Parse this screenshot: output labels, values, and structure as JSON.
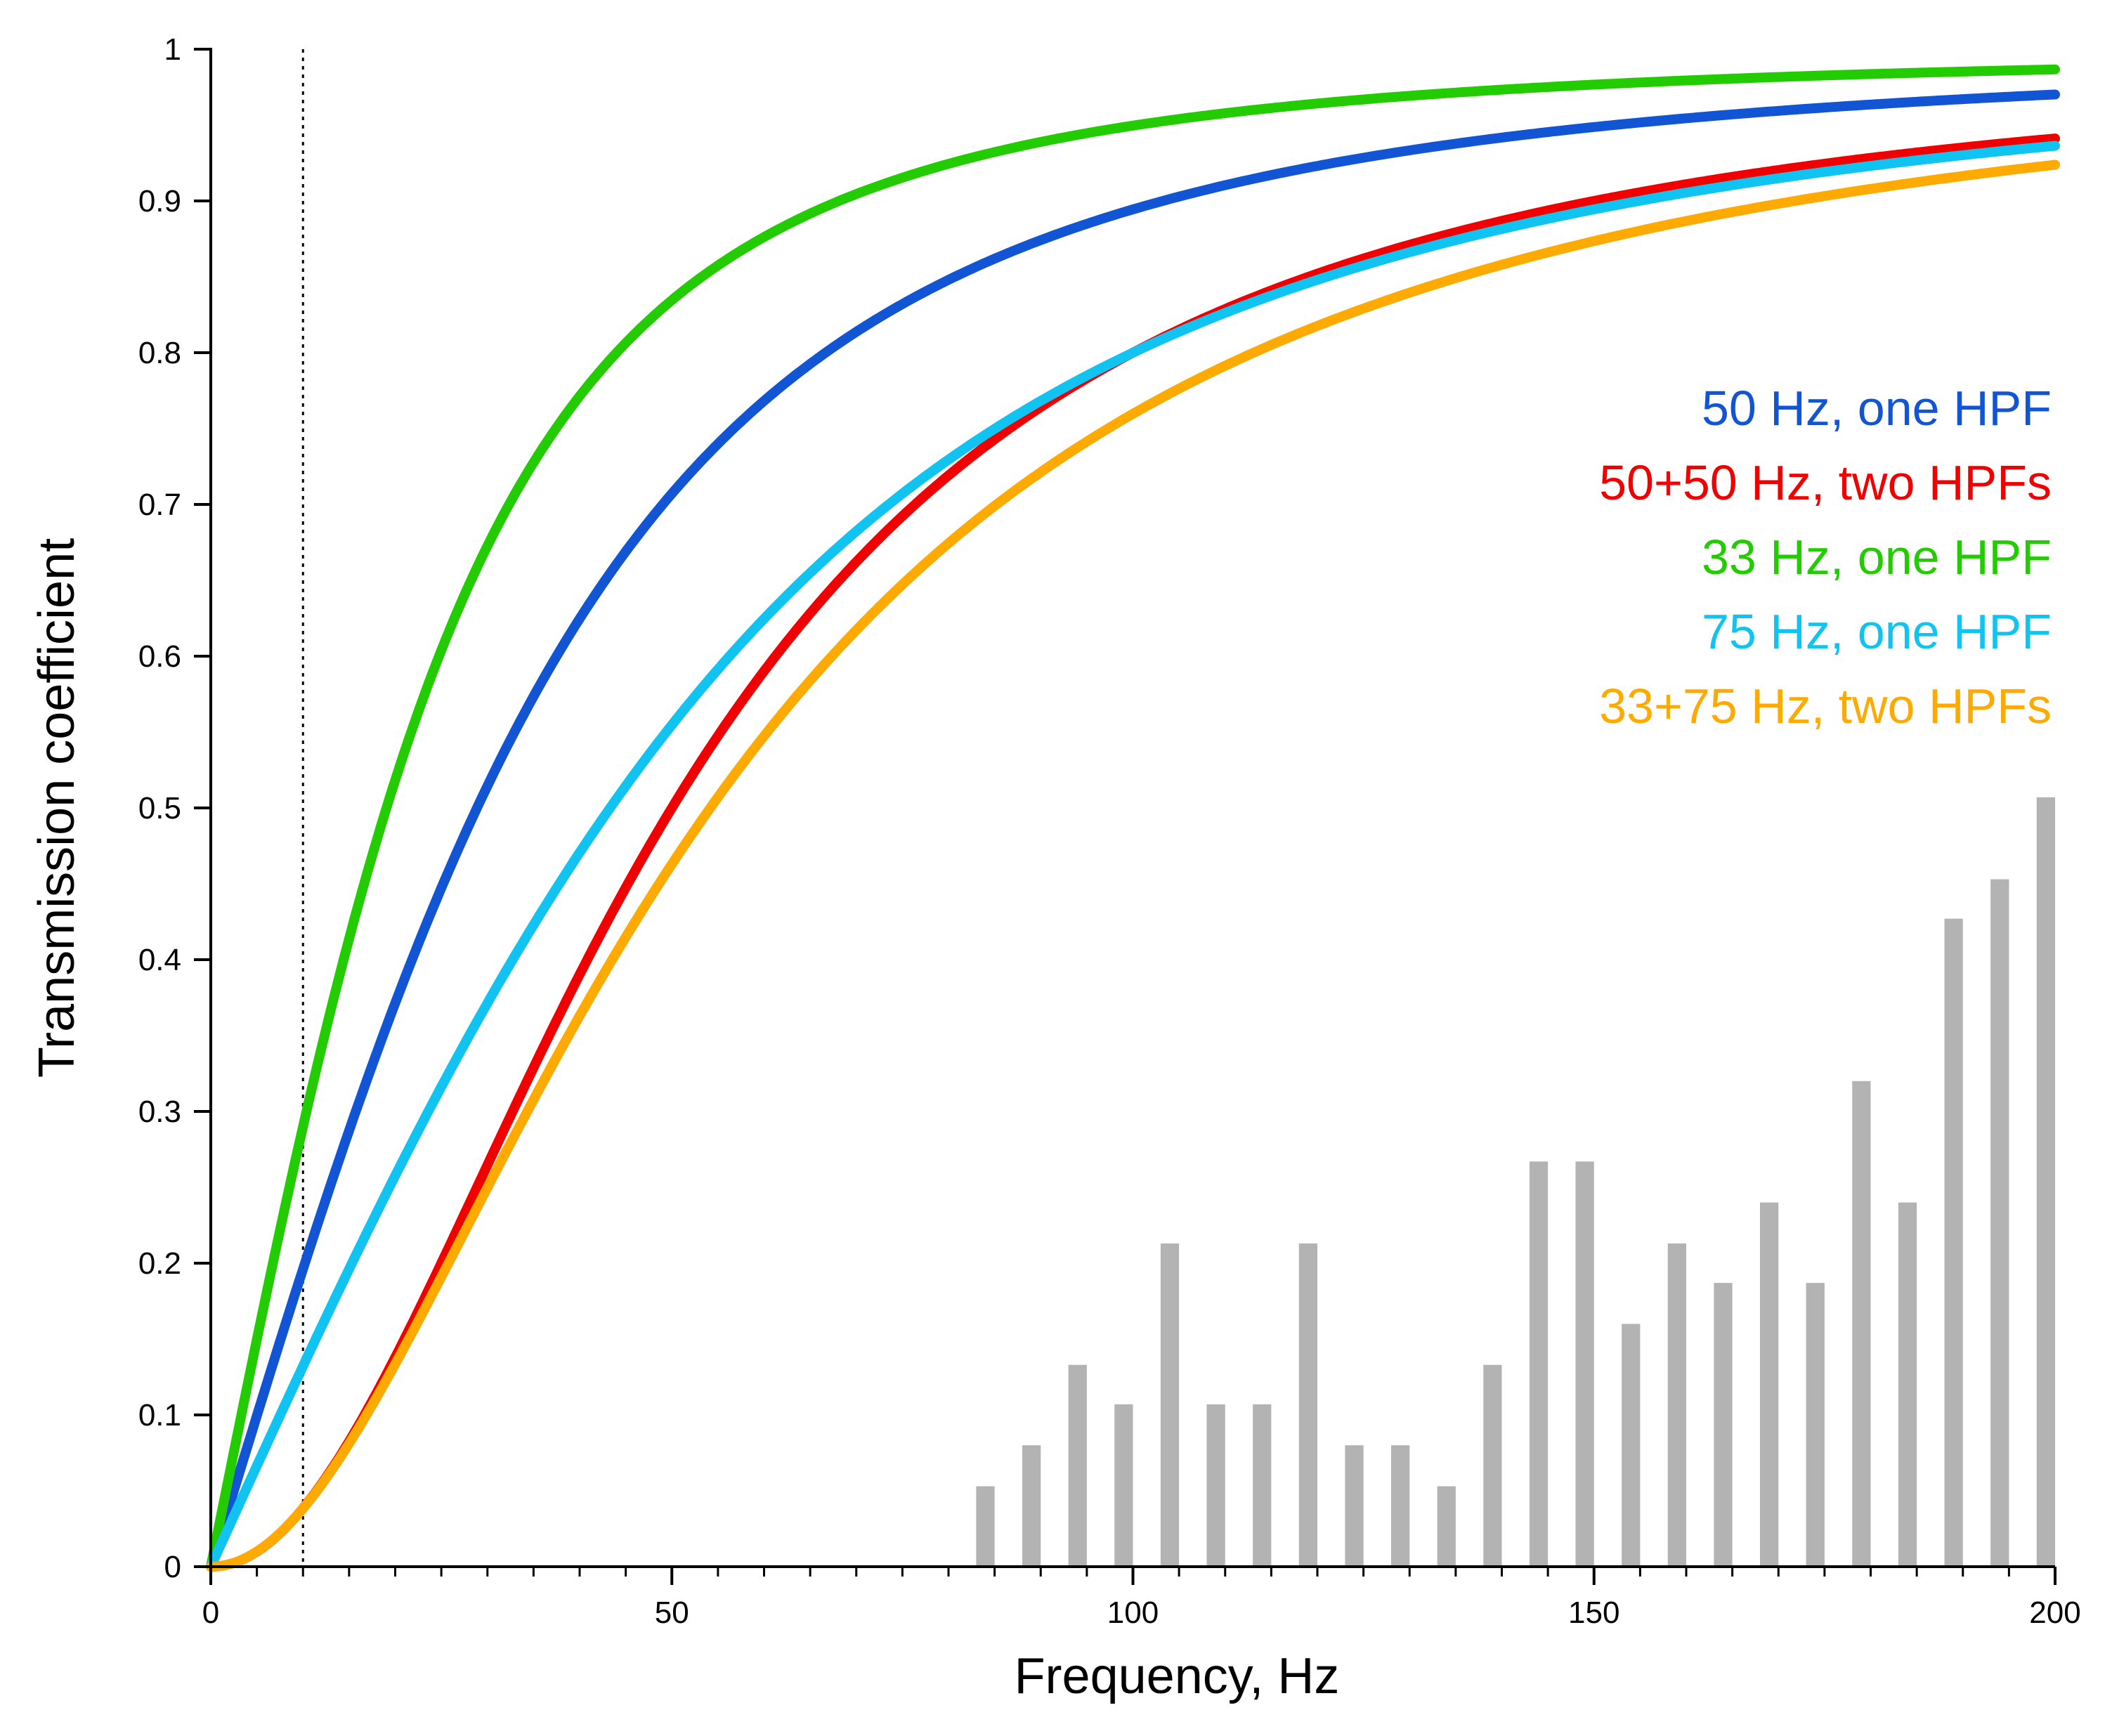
{
  "chart_data": {
    "type": "line",
    "title": "",
    "xlabel": "Frequency, Hz",
    "ylabel": "Transmission coefficient",
    "xlim": [
      0,
      200
    ],
    "ylim": [
      0,
      1
    ],
    "x_ticks": [
      0,
      50,
      100,
      150,
      200
    ],
    "y_ticks": [
      0,
      0.1,
      0.2,
      0.3,
      0.4,
      0.5,
      0.6,
      0.7,
      0.8,
      0.9,
      1
    ],
    "y_tick_labels": [
      "0",
      "0.1",
      "0.2",
      "0.3",
      "0.4",
      "0.5",
      "0.6",
      "0.7",
      "0.8",
      "0.9",
      "1"
    ],
    "x_minor_tick_step": 5,
    "grid": false,
    "legend_position": "right",
    "reference_line": {
      "x": 10,
      "style": "dotted"
    },
    "series": [
      {
        "name": "50 Hz, one HPF",
        "color": "#1155d4",
        "filter_type": "one",
        "cutoffs_hz": [
          50
        ],
        "x": [
          0,
          10,
          20,
          30,
          40,
          50,
          60,
          80,
          100,
          150,
          200
        ],
        "values": [
          0,
          0.196,
          0.371,
          0.514,
          0.625,
          0.707,
          0.768,
          0.848,
          0.894,
          0.949,
          0.97
        ]
      },
      {
        "name": "50+50 Hz, two HPFs",
        "color": "#f00000",
        "filter_type": "two",
        "cutoffs_hz": [
          50,
          50
        ],
        "x": [
          0,
          10,
          20,
          30,
          40,
          50,
          60,
          80,
          100,
          150,
          200
        ],
        "values": [
          0,
          0.038,
          0.138,
          0.265,
          0.39,
          0.5,
          0.59,
          0.72,
          0.8,
          0.9,
          0.941
        ]
      },
      {
        "name": "33 Hz, one HPF",
        "color": "#22cc00",
        "filter_type": "one",
        "cutoffs_hz": [
          33
        ],
        "x": [
          0,
          10,
          20,
          30,
          40,
          50,
          60,
          80,
          100,
          150,
          200
        ],
        "values": [
          0,
          0.29,
          0.518,
          0.673,
          0.771,
          0.835,
          0.876,
          0.924,
          0.95,
          0.977,
          0.987
        ]
      },
      {
        "name": "75 Hz, one HPF",
        "color": "#11c3f0",
        "filter_type": "one",
        "cutoffs_hz": [
          75
        ],
        "x": [
          0,
          10,
          20,
          30,
          40,
          50,
          60,
          80,
          100,
          150,
          200
        ],
        "values": [
          0,
          0.132,
          0.258,
          0.371,
          0.47,
          0.555,
          0.625,
          0.729,
          0.8,
          0.894,
          0.936
        ]
      },
      {
        "name": "33+75 Hz, two HPFs",
        "color": "#ffaa00",
        "filter_type": "two",
        "cutoffs_hz": [
          33,
          75
        ],
        "x": [
          0,
          10,
          20,
          30,
          40,
          50,
          60,
          80,
          100,
          150,
          200
        ],
        "values": [
          0,
          0.038,
          0.134,
          0.25,
          0.362,
          0.463,
          0.548,
          0.674,
          0.76,
          0.874,
          0.924
        ]
      }
    ],
    "histogram": {
      "color": "#b3b3b3",
      "bar_width_hz": 2,
      "x": [
        85,
        90,
        95,
        100,
        105,
        110,
        115,
        120,
        125,
        130,
        135,
        140,
        145,
        150,
        155,
        160,
        165,
        170,
        175,
        180,
        185,
        190,
        195,
        200
      ],
      "values": [
        0.053,
        0.08,
        0.133,
        0.107,
        0.213,
        0.107,
        0.107,
        0.213,
        0.08,
        0.08,
        0.053,
        0.133,
        0.267,
        0.267,
        0.16,
        0.213,
        0.187,
        0.24,
        0.187,
        0.32,
        0.24,
        0.427,
        0.453,
        0.507
      ]
    }
  }
}
